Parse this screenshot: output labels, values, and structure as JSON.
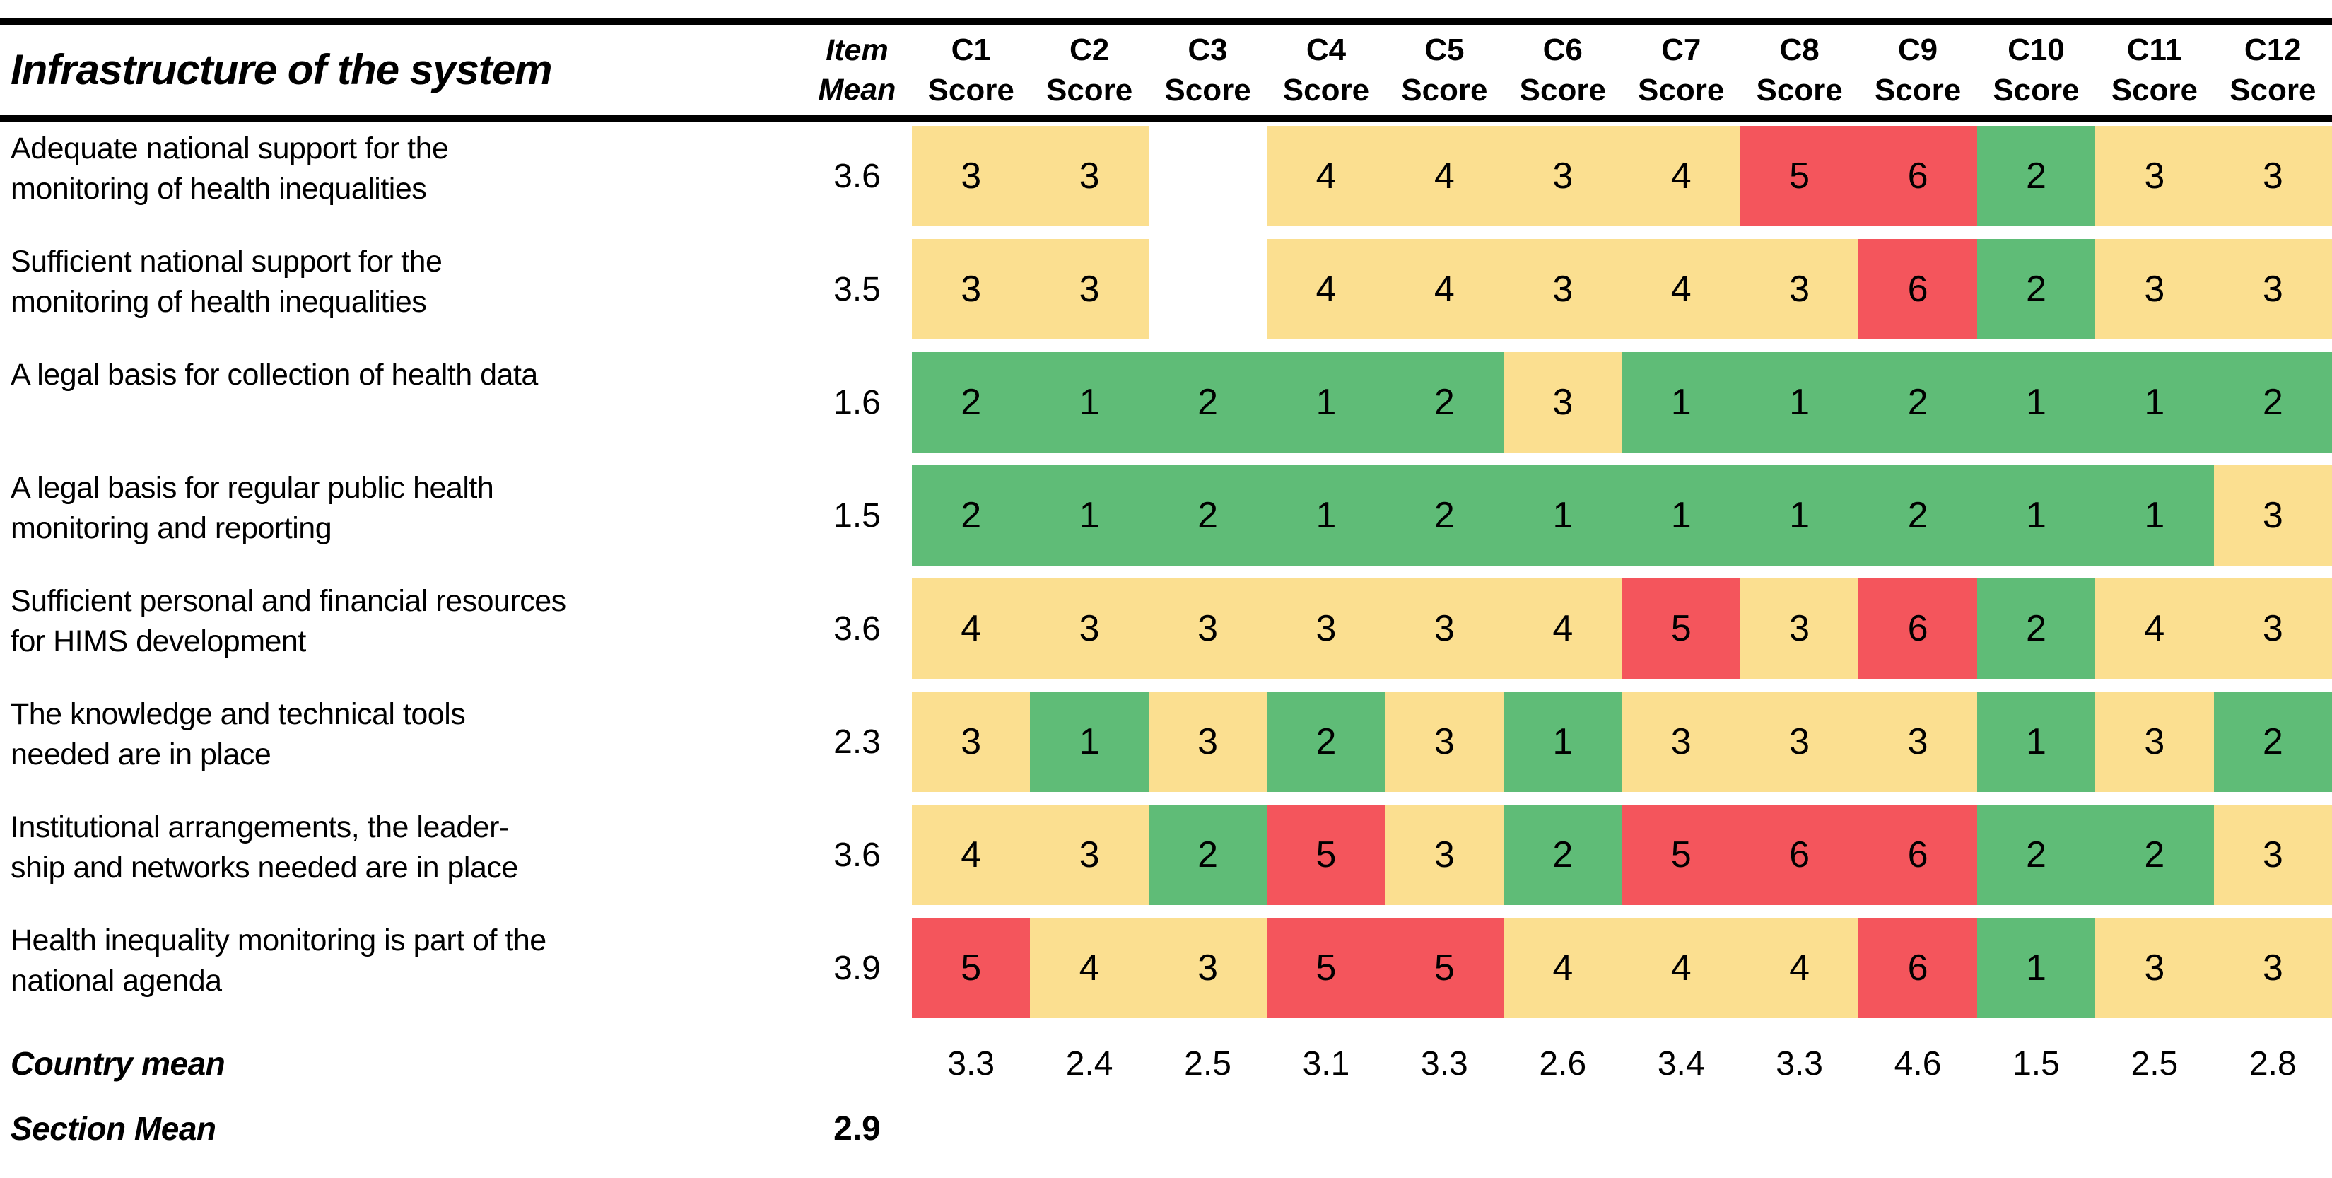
{
  "title": "Infrastructure of the system",
  "header": {
    "item_label": "Item\nMean",
    "score_label": "Score"
  },
  "chart_data": {
    "type": "heatmap",
    "columns": [
      "C1",
      "C2",
      "C3",
      "C4",
      "C5",
      "C6",
      "C7",
      "C8",
      "C9",
      "C10",
      "C11",
      "C12"
    ],
    "rows": [
      {
        "label": "Adequate national support for the\nmonitoring of health inequalities",
        "mean": 3.6,
        "scores": [
          3,
          3,
          null,
          4,
          4,
          3,
          4,
          5,
          6,
          2,
          3,
          3
        ]
      },
      {
        "label": "Sufficient national support for the\nmonitoring of health inequalities",
        "mean": 3.5,
        "scores": [
          3,
          3,
          null,
          4,
          4,
          3,
          4,
          3,
          6,
          2,
          3,
          3
        ]
      },
      {
        "label": "A legal basis for collection of health data",
        "mean": 1.6,
        "scores": [
          2,
          1,
          2,
          1,
          2,
          3,
          1,
          1,
          2,
          1,
          1,
          2
        ]
      },
      {
        "label": "A legal basis for regular public health\nmonitoring and reporting",
        "mean": 1.5,
        "scores": [
          2,
          1,
          2,
          1,
          2,
          1,
          1,
          1,
          2,
          1,
          1,
          3
        ]
      },
      {
        "label": "Sufficient personal and financial resources\nfor HIMS development",
        "mean": 3.6,
        "scores": [
          4,
          3,
          3,
          3,
          3,
          4,
          5,
          3,
          6,
          2,
          4,
          3
        ]
      },
      {
        "label": "The knowledge and technical tools\nneeded are in place",
        "mean": 2.3,
        "scores": [
          3,
          1,
          3,
          2,
          3,
          1,
          3,
          3,
          3,
          1,
          3,
          2
        ]
      },
      {
        "label": "Institutional arrangements, the leader-\nship and networks needed are in place",
        "mean": 3.6,
        "scores": [
          4,
          3,
          2,
          5,
          3,
          2,
          5,
          6,
          6,
          2,
          2,
          3
        ]
      },
      {
        "label": "Health inequality monitoring is part of the\nnational agenda",
        "mean": 3.9,
        "scores": [
          5,
          4,
          3,
          5,
          5,
          4,
          4,
          4,
          6,
          1,
          3,
          3
        ]
      }
    ],
    "country_mean": {
      "label": "Country mean",
      "values": [
        3.3,
        2.4,
        2.5,
        3.1,
        3.3,
        2.6,
        3.4,
        3.3,
        4.6,
        1.5,
        2.5,
        2.8
      ]
    },
    "section_mean": {
      "label": "Section Mean",
      "value": 2.9
    },
    "color_scale": {
      "score_1_2": "#5FBC77",
      "score_3_4": "#FBDF90",
      "score_5_6": "#F4555C"
    }
  }
}
